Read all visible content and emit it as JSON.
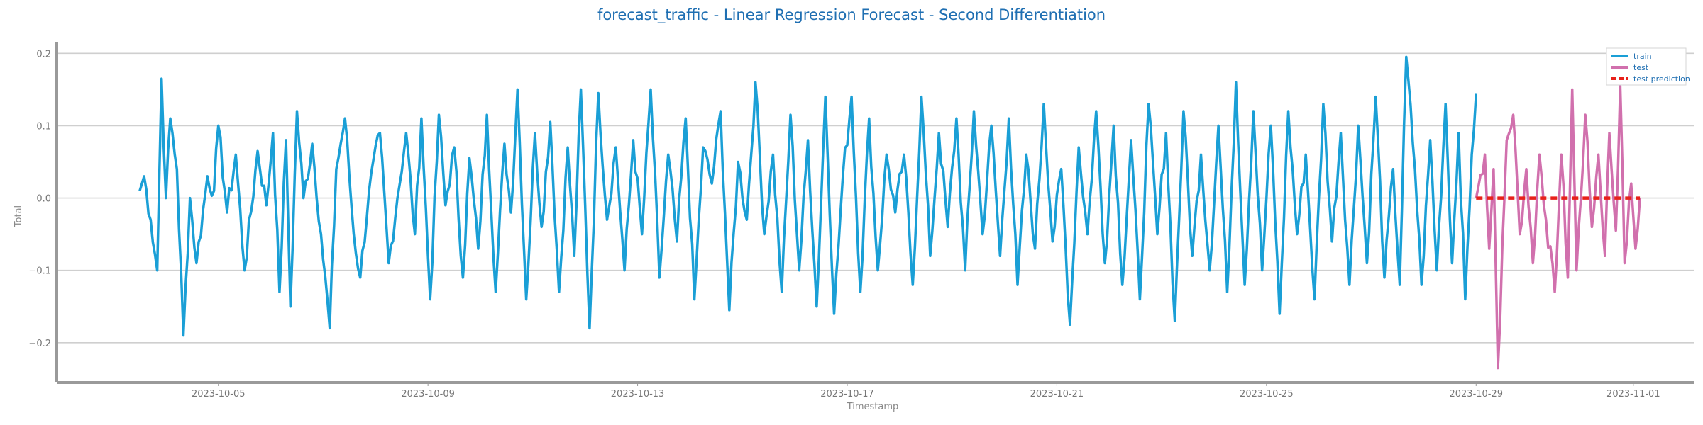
{
  "chart_data": {
    "type": "line",
    "title": "forecast_traffic - Linear Regression Forecast - Second Differentiation",
    "xlabel": "Timestamp",
    "ylabel": "Total",
    "xlim": [
      "2023-10-01T22:00",
      "2023-11-02T04:00"
    ],
    "ylim": [
      -0.255,
      0.215
    ],
    "x_ticks": [
      "2023-10-05",
      "2023-10-09",
      "2023-10-13",
      "2023-10-17",
      "2023-10-21",
      "2023-10-25",
      "2023-10-29",
      "2023-11-01"
    ],
    "y_ticks": [
      -0.2,
      -0.1,
      0.0,
      0.1,
      0.2
    ],
    "y_tick_labels": [
      "−0.2",
      "−0.1",
      "0.0",
      "0.1",
      "0.2"
    ],
    "grid": "horizontal",
    "legend_position": "top-right",
    "sampling": "hourly",
    "series": [
      {
        "name": "train",
        "color": "#1a9fd6",
        "start": "2023-10-03T12:00",
        "end": "2023-10-29T00:00",
        "keypoints": [
          [
            "2023-10-03T12:00",
            0.01
          ],
          [
            "2023-10-03T14:00",
            0.03
          ],
          [
            "2023-10-03T17:00",
            -0.03
          ],
          [
            "2023-10-03T20:00",
            -0.1
          ],
          [
            "2023-10-03T22:00",
            0.165
          ],
          [
            "2023-10-04T00:00",
            0.0
          ],
          [
            "2023-10-04T02:00",
            0.11
          ],
          [
            "2023-10-04T05:00",
            0.04
          ],
          [
            "2023-10-04T08:00",
            -0.19
          ],
          [
            "2023-10-04T11:00",
            0.0
          ],
          [
            "2023-10-04T14:00",
            -0.09
          ],
          [
            "2023-10-04T19:00",
            0.03
          ],
          [
            "2023-10-04T22:00",
            0.01
          ],
          [
            "2023-10-05T00:00",
            0.1
          ],
          [
            "2023-10-05T04:00",
            -0.02
          ],
          [
            "2023-10-05T08:00",
            0.06
          ],
          [
            "2023-10-05T12:00",
            -0.1
          ],
          [
            "2023-10-05T18:00",
            0.065
          ],
          [
            "2023-10-05T22:00",
            -0.01
          ],
          [
            "2023-10-06T01:00",
            0.09
          ],
          [
            "2023-10-06T04:00",
            -0.13
          ],
          [
            "2023-10-06T07:00",
            0.08
          ],
          [
            "2023-10-06T09:00",
            -0.15
          ],
          [
            "2023-10-06T12:00",
            0.12
          ],
          [
            "2023-10-06T15:00",
            0.0
          ],
          [
            "2023-10-06T19:00",
            0.075
          ],
          [
            "2023-10-06T23:00",
            -0.05
          ],
          [
            "2023-10-07T03:00",
            -0.18
          ],
          [
            "2023-10-07T06:00",
            0.04
          ],
          [
            "2023-10-07T10:00",
            0.11
          ],
          [
            "2023-10-07T14:00",
            -0.05
          ],
          [
            "2023-10-07T17:00",
            -0.11
          ],
          [
            "2023-10-07T21:00",
            0.01
          ],
          [
            "2023-10-08T02:00",
            0.09
          ],
          [
            "2023-10-08T06:00",
            -0.09
          ],
          [
            "2023-10-08T10:00",
            0.0
          ],
          [
            "2023-10-08T14:00",
            0.09
          ],
          [
            "2023-10-08T18:00",
            -0.05
          ],
          [
            "2023-10-08T21:00",
            0.11
          ],
          [
            "2023-10-09T01:00",
            -0.14
          ],
          [
            "2023-10-09T05:00",
            0.115
          ],
          [
            "2023-10-09T08:00",
            -0.01
          ],
          [
            "2023-10-09T12:00",
            0.07
          ],
          [
            "2023-10-09T16:00",
            -0.11
          ],
          [
            "2023-10-09T19:00",
            0.055
          ],
          [
            "2023-10-09T23:00",
            -0.07
          ],
          [
            "2023-10-10T03:00",
            0.115
          ],
          [
            "2023-10-10T07:00",
            -0.13
          ],
          [
            "2023-10-10T11:00",
            0.075
          ],
          [
            "2023-10-10T14:00",
            -0.02
          ],
          [
            "2023-10-10T17:00",
            0.15
          ],
          [
            "2023-10-10T21:00",
            -0.14
          ],
          [
            "2023-10-11T01:00",
            0.09
          ],
          [
            "2023-10-11T04:00",
            -0.04
          ],
          [
            "2023-10-11T08:00",
            0.105
          ],
          [
            "2023-10-11T12:00",
            -0.13
          ],
          [
            "2023-10-11T16:00",
            0.07
          ],
          [
            "2023-10-11T19:00",
            -0.08
          ],
          [
            "2023-10-11T22:00",
            0.15
          ],
          [
            "2023-10-12T02:00",
            -0.18
          ],
          [
            "2023-10-12T06:00",
            0.145
          ],
          [
            "2023-10-12T10:00",
            -0.03
          ],
          [
            "2023-10-12T14:00",
            0.07
          ],
          [
            "2023-10-12T18:00",
            -0.1
          ],
          [
            "2023-10-12T22:00",
            0.08
          ],
          [
            "2023-10-13T02:00",
            -0.05
          ],
          [
            "2023-10-13T06:00",
            0.15
          ],
          [
            "2023-10-13T10:00",
            -0.11
          ],
          [
            "2023-10-13T14:00",
            0.06
          ],
          [
            "2023-10-13T18:00",
            -0.06
          ],
          [
            "2023-10-13T22:00",
            0.11
          ],
          [
            "2023-10-14T02:00",
            -0.14
          ],
          [
            "2023-10-14T06:00",
            0.07
          ],
          [
            "2023-10-14T10:00",
            0.02
          ],
          [
            "2023-10-14T14:00",
            0.12
          ],
          [
            "2023-10-14T18:00",
            -0.155
          ],
          [
            "2023-10-14T22:00",
            0.05
          ],
          [
            "2023-10-15T02:00",
            -0.03
          ],
          [
            "2023-10-15T06:00",
            0.16
          ],
          [
            "2023-10-15T10:00",
            -0.05
          ],
          [
            "2023-10-15T14:00",
            0.06
          ],
          [
            "2023-10-15T18:00",
            -0.13
          ],
          [
            "2023-10-15T22:00",
            0.115
          ],
          [
            "2023-10-16T02:00",
            -0.1
          ],
          [
            "2023-10-16T06:00",
            0.08
          ],
          [
            "2023-10-16T10:00",
            -0.15
          ],
          [
            "2023-10-16T14:00",
            0.14
          ],
          [
            "2023-10-16T18:00",
            -0.16
          ],
          [
            "2023-10-16T22:00",
            0.03
          ],
          [
            "2023-10-17T02:00",
            0.14
          ],
          [
            "2023-10-17T06:00",
            -0.13
          ],
          [
            "2023-10-17T10:00",
            0.11
          ],
          [
            "2023-10-17T14:00",
            -0.1
          ],
          [
            "2023-10-17T18:00",
            0.06
          ],
          [
            "2023-10-17T22:00",
            -0.02
          ],
          [
            "2023-10-18T02:00",
            0.06
          ],
          [
            "2023-10-18T06:00",
            -0.12
          ],
          [
            "2023-10-18T10:00",
            0.14
          ],
          [
            "2023-10-18T14:00",
            -0.08
          ],
          [
            "2023-10-18T18:00",
            0.09
          ],
          [
            "2023-10-18T22:00",
            -0.04
          ],
          [
            "2023-10-19T02:00",
            0.11
          ],
          [
            "2023-10-19T06:00",
            -0.1
          ],
          [
            "2023-10-19T10:00",
            0.12
          ],
          [
            "2023-10-19T14:00",
            -0.05
          ],
          [
            "2023-10-19T18:00",
            0.1
          ],
          [
            "2023-10-19T22:00",
            -0.08
          ],
          [
            "2023-10-20T02:00",
            0.11
          ],
          [
            "2023-10-20T06:00",
            -0.12
          ],
          [
            "2023-10-20T10:00",
            0.06
          ],
          [
            "2023-10-20T14:00",
            -0.07
          ],
          [
            "2023-10-20T18:00",
            0.13
          ],
          [
            "2023-10-20T22:00",
            -0.06
          ],
          [
            "2023-10-21T02:00",
            0.04
          ],
          [
            "2023-10-21T06:00",
            -0.175
          ],
          [
            "2023-10-21T10:00",
            0.07
          ],
          [
            "2023-10-21T14:00",
            -0.05
          ],
          [
            "2023-10-21T18:00",
            0.12
          ],
          [
            "2023-10-21T22:00",
            -0.09
          ],
          [
            "2023-10-22T02:00",
            0.1
          ],
          [
            "2023-10-22T06:00",
            -0.12
          ],
          [
            "2023-10-22T10:00",
            0.08
          ],
          [
            "2023-10-22T14:00",
            -0.14
          ],
          [
            "2023-10-22T18:00",
            0.13
          ],
          [
            "2023-10-22T22:00",
            -0.05
          ],
          [
            "2023-10-23T02:00",
            0.09
          ],
          [
            "2023-10-23T06:00",
            -0.17
          ],
          [
            "2023-10-23T10:00",
            0.12
          ],
          [
            "2023-10-23T14:00",
            -0.08
          ],
          [
            "2023-10-23T18:00",
            0.06
          ],
          [
            "2023-10-23T22:00",
            -0.1
          ],
          [
            "2023-10-24T02:00",
            0.1
          ],
          [
            "2023-10-24T06:00",
            -0.13
          ],
          [
            "2023-10-24T10:00",
            0.16
          ],
          [
            "2023-10-24T14:00",
            -0.12
          ],
          [
            "2023-10-24T18:00",
            0.12
          ],
          [
            "2023-10-24T22:00",
            -0.1
          ],
          [
            "2023-10-25T02:00",
            0.1
          ],
          [
            "2023-10-25T06:00",
            -0.16
          ],
          [
            "2023-10-25T10:00",
            0.12
          ],
          [
            "2023-10-25T14:00",
            -0.05
          ],
          [
            "2023-10-25T18:00",
            0.06
          ],
          [
            "2023-10-25T22:00",
            -0.14
          ],
          [
            "2023-10-26T02:00",
            0.13
          ],
          [
            "2023-10-26T06:00",
            -0.06
          ],
          [
            "2023-10-26T10:00",
            0.09
          ],
          [
            "2023-10-26T14:00",
            -0.12
          ],
          [
            "2023-10-26T18:00",
            0.1
          ],
          [
            "2023-10-26T22:00",
            -0.09
          ],
          [
            "2023-10-27T02:00",
            0.14
          ],
          [
            "2023-10-27T06:00",
            -0.11
          ],
          [
            "2023-10-27T10:00",
            0.04
          ],
          [
            "2023-10-27T13:00",
            -0.12
          ],
          [
            "2023-10-27T16:00",
            0.195
          ],
          [
            "2023-10-27T20:00",
            0.04
          ],
          [
            "2023-10-27T23:00",
            -0.12
          ],
          [
            "2023-10-28T03:00",
            0.08
          ],
          [
            "2023-10-28T06:00",
            -0.1
          ],
          [
            "2023-10-28T10:00",
            0.13
          ],
          [
            "2023-10-28T13:00",
            -0.09
          ],
          [
            "2023-10-28T16:00",
            0.09
          ],
          [
            "2023-10-28T19:00",
            -0.14
          ],
          [
            "2023-10-28T22:00",
            0.06
          ],
          [
            "2023-10-29T00:00",
            0.145
          ]
        ]
      },
      {
        "name": "test",
        "color": "#d170ad",
        "start": "2023-10-29T00:00",
        "end": "2023-11-01T03:00",
        "keypoints": [
          [
            "2023-10-29T00:00",
            0.0
          ],
          [
            "2023-10-29T04:00",
            0.06
          ],
          [
            "2023-10-29T06:00",
            -0.07
          ],
          [
            "2023-10-29T08:00",
            0.04
          ],
          [
            "2023-10-29T10:00",
            -0.235
          ],
          [
            "2023-10-29T14:00",
            0.08
          ],
          [
            "2023-10-29T17:00",
            0.115
          ],
          [
            "2023-10-29T20:00",
            -0.05
          ],
          [
            "2023-10-29T23:00",
            0.04
          ],
          [
            "2023-10-30T02:00",
            -0.09
          ],
          [
            "2023-10-30T05:00",
            0.06
          ],
          [
            "2023-10-30T08:00",
            -0.03
          ],
          [
            "2023-10-30T12:00",
            -0.13
          ],
          [
            "2023-10-30T15:00",
            0.06
          ],
          [
            "2023-10-30T18:00",
            -0.11
          ],
          [
            "2023-10-30T20:00",
            0.15
          ],
          [
            "2023-10-30T22:00",
            -0.1
          ],
          [
            "2023-10-31T02:00",
            0.115
          ],
          [
            "2023-10-31T05:00",
            -0.04
          ],
          [
            "2023-10-31T08:00",
            0.06
          ],
          [
            "2023-10-31T11:00",
            -0.08
          ],
          [
            "2023-10-31T13:00",
            0.09
          ],
          [
            "2023-10-31T16:00",
            -0.045
          ],
          [
            "2023-10-31T18:00",
            0.155
          ],
          [
            "2023-10-31T20:00",
            -0.09
          ],
          [
            "2023-10-31T23:00",
            0.02
          ],
          [
            "2023-11-01T01:00",
            -0.07
          ],
          [
            "2023-11-01T03:00",
            0.0
          ]
        ]
      },
      {
        "name": "test prediction",
        "color": "#e8211a",
        "start": "2023-10-29T00:00",
        "end": "2023-11-01T03:00",
        "keypoints": [
          [
            "2023-10-29T00:00",
            0.0
          ],
          [
            "2023-11-01T03:00",
            0.0
          ]
        ]
      }
    ]
  }
}
